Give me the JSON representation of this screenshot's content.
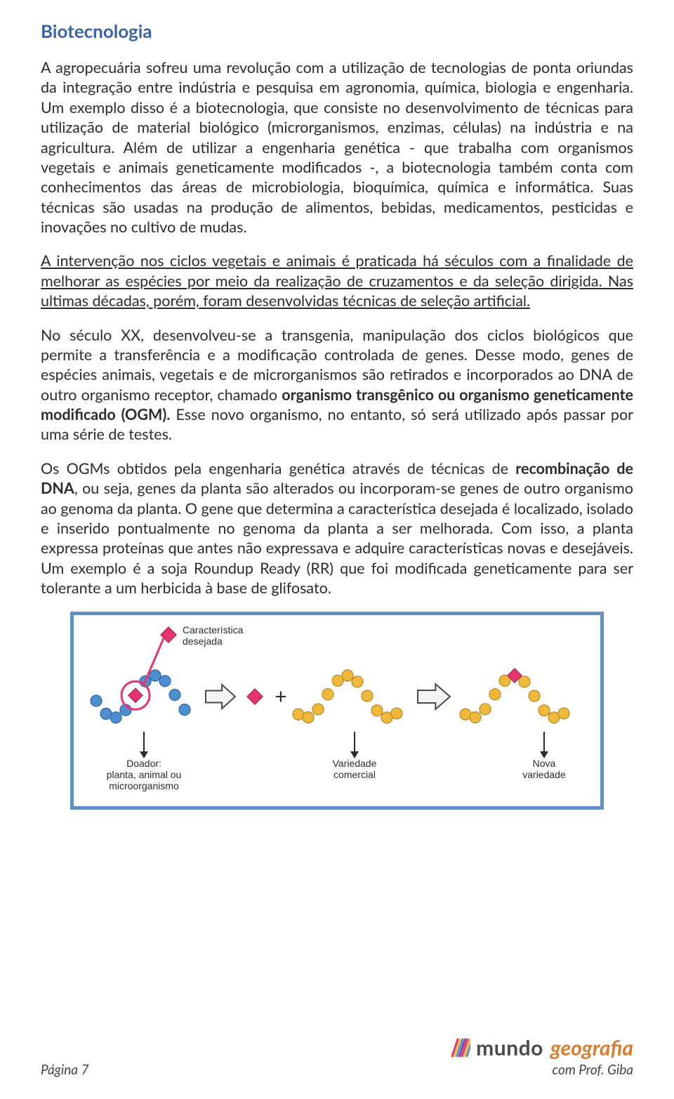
{
  "title": "Biotecnologia",
  "paragraphs": {
    "p1_a": "A agropecuária sofreu uma revolução com a utilização de tecnologias de ponta oriundas da integração entre indústria e pesquisa em agronomia, química, biologia e engenharia. Um exemplo disso é a biotecnologia, que consiste no desenvolvimento de técnicas para utilização de material biológico (microrganismos, enzimas, células) na indústria e na agricultura. Além de utilizar a engenharia genética - que trabalha com organismos vegetais e animais geneticamente modificados -, a biotecnologia também conta com conhecimentos das áreas de microbiologia, bioquímica, química e informática. Suas técnicas são usadas na produção de alimentos, bebidas, medicamentos, pesticidas e inovações no cultivo de mudas.",
    "p2_underlined": "A intervenção nos ciclos vegetais e animais é praticada há séculos com a finalidade de melhorar as espécies por meio da realização de cruzamentos e da seleção dirigida. Nas ultimas décadas, porém, foram desenvolvidas técnicas de seleção artificial.",
    "p3_a": "No século XX, desenvolveu-se a transgenia, manipulação dos ciclos biológicos que permite a transferência e a modificação controlada de genes. Desse modo, genes de espécies animais, vegetais e de microrganismos são retirados e incorporados ao DNA de outro organismo receptor, chamado ",
    "p3_b_bold": "organismo transgênico ou organismo geneticamente modificado (OGM).",
    "p3_c": " Esse novo organismo, no entanto, só será utilizado após passar por uma série de testes.",
    "p4_a": "Os OGMs obtidos pela engenharia genética através de técnicas de ",
    "p4_b_bold": "recombinação de DNA",
    "p4_c": ", ou seja, genes da planta são alterados ou incorporam-se genes de outro organismo ao genoma da planta. O gene que determina a característica desejada é localizado, isolado e inserido pontualmente no genoma da planta a ser melhorada. Com isso, a planta expressa proteínas que antes não expressava e adquire características novas e desejáveis. Um exemplo é a soja Roundup Ready (RR) que foi modificada geneticamente para ser tolerante a um herbicida à base de glifosato."
  },
  "diagram": {
    "border_color": "#5e8fc7",
    "labels": {
      "trait": "Característica\ndesejada",
      "donor": "Doador:\nplanta, animal ou\nmicroorganismo",
      "commercial": "Variedade\ncomercial",
      "new_variety": "Nova\nvariedade"
    },
    "colors": {
      "chain_blue": "#4d8fd1",
      "chain_blue_edge": "#2c639e",
      "chain_yellow": "#f0b93a",
      "chain_yellow_edge": "#b5872a",
      "gene_pink": "#e6346f",
      "gene_pink_edge": "#b3265a",
      "circle_pink": "#e6346f",
      "arrow_fill": "#f3f3f3",
      "arrow_stroke": "#4a4a4a",
      "text": "#2b2b2b"
    },
    "font_size_label": 14
  },
  "footer": {
    "page": "Página 7",
    "brand_word1": "mundo",
    "brand_word2": "geografia",
    "brand_sub": "com Prof. Giba",
    "logo_colors": [
      "#e6346f",
      "#f0b93a",
      "#4d8fd1",
      "#8a3fa0"
    ]
  },
  "style": {
    "title_color": "#3763a6",
    "body_color": "#2b2b2b",
    "brand_primary": "#4a4a4a",
    "brand_accent": "#d97d2f",
    "title_fontsize": 26,
    "body_fontsize": 21.5
  }
}
